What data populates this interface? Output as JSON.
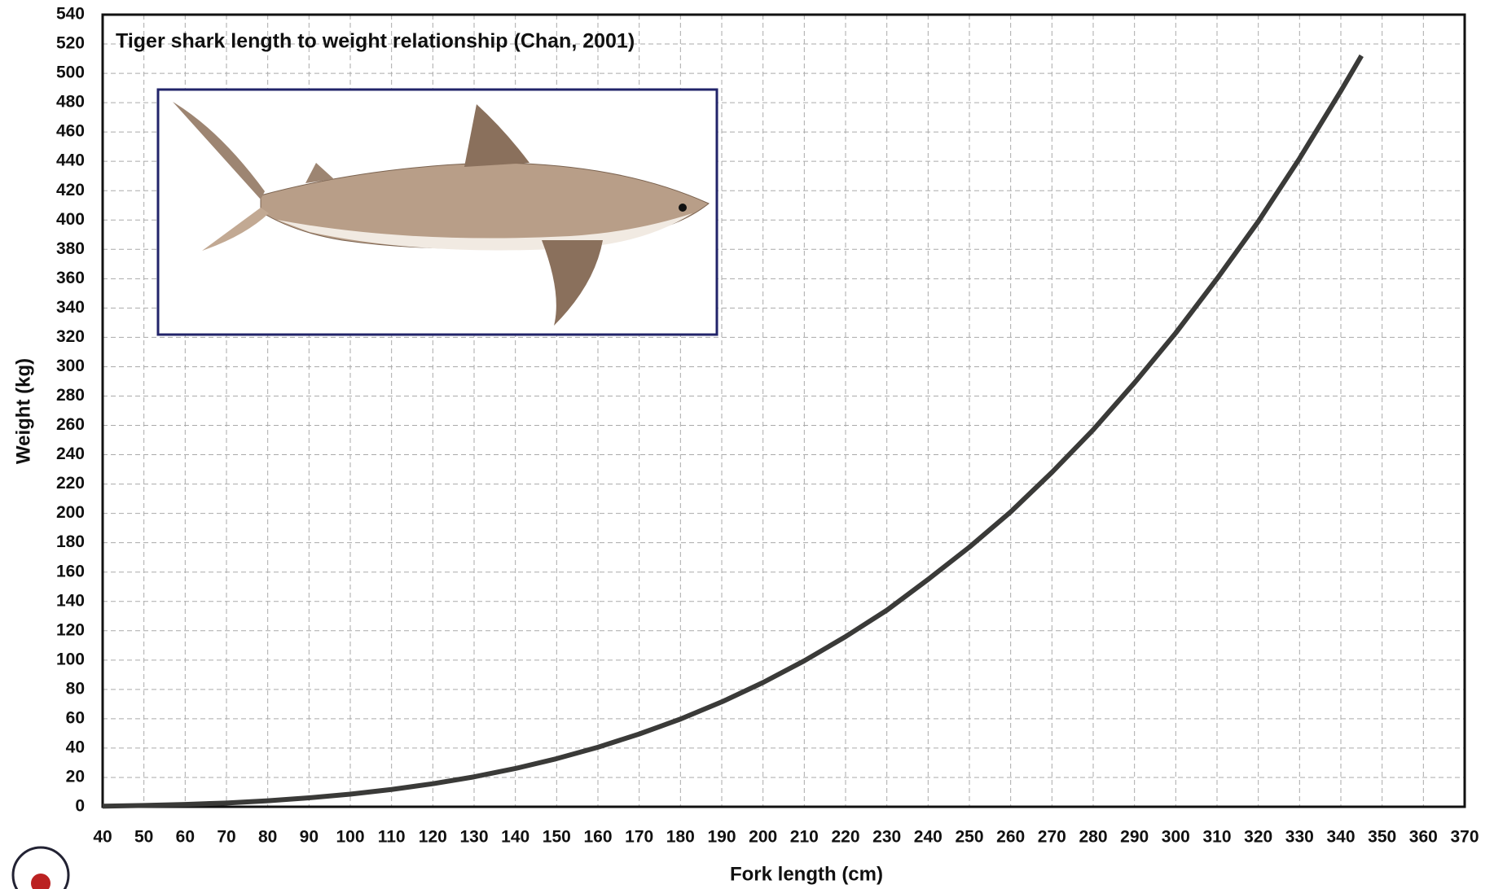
{
  "chart_data": {
    "type": "line",
    "title": "Tiger shark length to weight relationship (Chan, 2001)",
    "x_label": "Fork length (cm)",
    "y_label": "Weight (kg)",
    "x": [
      40,
      50,
      60,
      70,
      80,
      90,
      100,
      110,
      120,
      130,
      140,
      150,
      160,
      170,
      180,
      190,
      200,
      210,
      220,
      230,
      240,
      250,
      260,
      270,
      280,
      290,
      300,
      310,
      320,
      330,
      340,
      345
    ],
    "series": [
      {
        "color": "#3a3a38",
        "values": [
          0.4,
          0.9,
          1.6,
          2.6,
          4.1,
          6.1,
          8.6,
          11.8,
          15.7,
          20.4,
          26.1,
          32.8,
          40.6,
          49.6,
          59.8,
          71.5,
          84.7,
          99.5,
          116,
          134,
          155,
          177,
          201,
          228,
          257,
          289,
          323,
          360,
          399,
          442,
          488,
          512
        ]
      }
    ],
    "xlim": [
      40,
      370
    ],
    "xticks": [
      40,
      50,
      60,
      70,
      80,
      90,
      100,
      110,
      120,
      130,
      140,
      150,
      160,
      170,
      180,
      190,
      200,
      210,
      220,
      230,
      240,
      250,
      260,
      270,
      280,
      290,
      300,
      310,
      320,
      330,
      340,
      350,
      360,
      370
    ],
    "ylim": [
      0,
      540
    ],
    "yticks": [
      0,
      20,
      40,
      60,
      80,
      100,
      120,
      140,
      160,
      180,
      200,
      220,
      240,
      260,
      280,
      300,
      320,
      340,
      360,
      380,
      400,
      420,
      440,
      460,
      480,
      500,
      520,
      540
    ],
    "grid": true
  }
}
